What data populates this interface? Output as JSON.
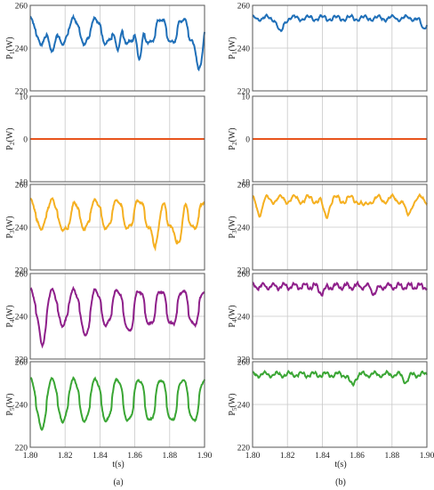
{
  "colors": {
    "p1": "#1f6fb8",
    "p2": "#e8541c",
    "p3": "#f5b021",
    "p4": "#8e1f8a",
    "p5": "#3aa634",
    "grid": "#c8c8c8",
    "frame": "#555555"
  },
  "chart_data": [
    {
      "id": "a1",
      "panel": "a",
      "row": 0,
      "type": "line",
      "ylabel_main": "P",
      "ylabel_sub": "1",
      "ylabel_unit": "(W)",
      "ylim": [
        220,
        260
      ],
      "yticks": [
        "220",
        "240",
        "260"
      ],
      "xlim": [
        1.8,
        1.9
      ],
      "series": [
        {
          "color_key": "p1",
          "mean": 248,
          "amp": 7,
          "period": 0.0125,
          "noise": 1.5,
          "dips": [
            [
              1.8125,
              -16
            ],
            [
              1.85,
              -14
            ],
            [
              1.8625,
              -18
            ],
            [
              1.8975,
              -20
            ]
          ]
        }
      ]
    },
    {
      "id": "a2",
      "panel": "a",
      "row": 1,
      "type": "line",
      "ylabel_main": "P",
      "ylabel_sub": "2",
      "ylabel_unit": "(W)",
      "ylim": [
        -10,
        10
      ],
      "yticks": [
        "-10",
        "0",
        "10"
      ],
      "xlim": [
        1.8,
        1.9
      ],
      "series": [
        {
          "color_key": "p2",
          "mean": 0,
          "amp": 0,
          "period": 0.0125,
          "noise": 0,
          "dips": []
        }
      ]
    },
    {
      "id": "a3",
      "panel": "a",
      "row": 2,
      "type": "line",
      "ylabel_main": "P",
      "ylabel_sub": "3",
      "ylabel_unit": "(W)",
      "ylim": [
        220,
        260
      ],
      "yticks": [
        "220",
        "240",
        "260"
      ],
      "xlim": [
        1.8,
        1.9
      ],
      "series": [
        {
          "color_key": "p3",
          "mean": 246,
          "amp": 8,
          "period": 0.0125,
          "noise": 1.5,
          "dips": [
            [
              1.8225,
              -6
            ],
            [
              1.8725,
              -16
            ],
            [
              1.8855,
              -18
            ]
          ]
        }
      ]
    },
    {
      "id": "a4",
      "panel": "a",
      "row": 3,
      "type": "line",
      "ylabel_main": "P",
      "ylabel_sub": "4",
      "ylabel_unit": "(W)",
      "ylim": [
        220,
        260
      ],
      "yticks": [
        "220",
        "240",
        "260"
      ],
      "xlim": [
        1.8,
        1.9
      ],
      "series": [
        {
          "color_key": "p4",
          "mean": 244,
          "amp": 10,
          "period": 0.0125,
          "noise": 1.5,
          "dips": [
            [
              1.8075,
              -10
            ],
            [
              1.8325,
              -6
            ],
            [
              1.8575,
              -4
            ]
          ]
        }
      ]
    },
    {
      "id": "a5",
      "panel": "a",
      "row": 4,
      "type": "line",
      "ylabel_main": "P",
      "ylabel_sub": "5",
      "ylabel_unit": "(W)",
      "ylim": [
        220,
        260
      ],
      "yticks": [
        "220",
        "240",
        "260"
      ],
      "xlim": [
        1.8,
        1.9
      ],
      "series": [
        {
          "color_key": "p5",
          "mean": 242,
          "amp": 12,
          "period": 0.0125,
          "noise": 1.2,
          "dips": [
            [
              1.8075,
              -4
            ]
          ]
        }
      ]
    },
    {
      "id": "b1",
      "panel": "b",
      "row": 0,
      "type": "line",
      "ylabel_main": "P",
      "ylabel_sub": "1",
      "ylabel_unit": "(W)",
      "ylim": [
        220,
        260
      ],
      "yticks": [
        "220",
        "240",
        "260"
      ],
      "xlim": [
        1.8,
        1.9
      ],
      "series": [
        {
          "color_key": "p1",
          "mean": 254,
          "amp": 1.2,
          "period": 0.008,
          "noise": 0.8,
          "dips": [
            [
              1.816,
              -7
            ],
            [
              1.898,
              -5
            ]
          ]
        }
      ]
    },
    {
      "id": "b2",
      "panel": "b",
      "row": 1,
      "type": "line",
      "ylabel_main": "P",
      "ylabel_sub": "2",
      "ylabel_unit": "(W)",
      "ylim": [
        -10,
        10
      ],
      "yticks": [
        "-10",
        "0",
        "10"
      ],
      "xlim": [
        1.8,
        1.9
      ],
      "series": [
        {
          "color_key": "p2",
          "mean": 0,
          "amp": 0,
          "period": 0.008,
          "noise": 0,
          "dips": []
        }
      ]
    },
    {
      "id": "b3",
      "panel": "b",
      "row": 2,
      "type": "line",
      "ylabel_main": "P",
      "ylabel_sub": "3",
      "ylabel_unit": "(W)",
      "ylim": [
        220,
        260
      ],
      "yticks": [
        "220",
        "240",
        "260"
      ],
      "xlim": [
        1.8,
        1.9
      ],
      "series": [
        {
          "color_key": "p3",
          "mean": 253,
          "amp": 2,
          "period": 0.008,
          "noise": 0.8,
          "dips": [
            [
              1.804,
              -6
            ],
            [
              1.842,
              -8
            ],
            [
              1.864,
              -4
            ],
            [
              1.889,
              -8
            ]
          ]
        }
      ]
    },
    {
      "id": "b4",
      "panel": "b",
      "row": 3,
      "type": "line",
      "ylabel_main": "P",
      "ylabel_sub": "4",
      "ylabel_unit": "(W)",
      "ylim": [
        220,
        260
      ],
      "yticks": [
        "220",
        "240",
        "260"
      ],
      "xlim": [
        1.8,
        1.9
      ],
      "series": [
        {
          "color_key": "p4",
          "mean": 254,
          "amp": 1.5,
          "period": 0.006,
          "noise": 0.8,
          "dips": [
            [
              1.84,
              -3
            ],
            [
              1.87,
              -3
            ]
          ]
        }
      ]
    },
    {
      "id": "b5",
      "panel": "b",
      "row": 4,
      "type": "line",
      "ylabel_main": "P",
      "ylabel_sub": "5",
      "ylabel_unit": "(W)",
      "ylim": [
        220,
        260
      ],
      "yticks": [
        "220",
        "240",
        "260"
      ],
      "xlim": [
        1.8,
        1.9
      ],
      "series": [
        {
          "color_key": "p5",
          "mean": 254,
          "amp": 1.2,
          "period": 0.007,
          "noise": 0.8,
          "dips": [
            [
              1.857,
              -5
            ],
            [
              1.888,
              -3
            ]
          ]
        }
      ]
    }
  ],
  "xticks": [
    "1.80",
    "1.82",
    "1.84",
    "1.86",
    "1.88",
    "1.90"
  ],
  "xlabel": "t(s)",
  "captions": {
    "a": "(a)",
    "b": "(b)"
  }
}
